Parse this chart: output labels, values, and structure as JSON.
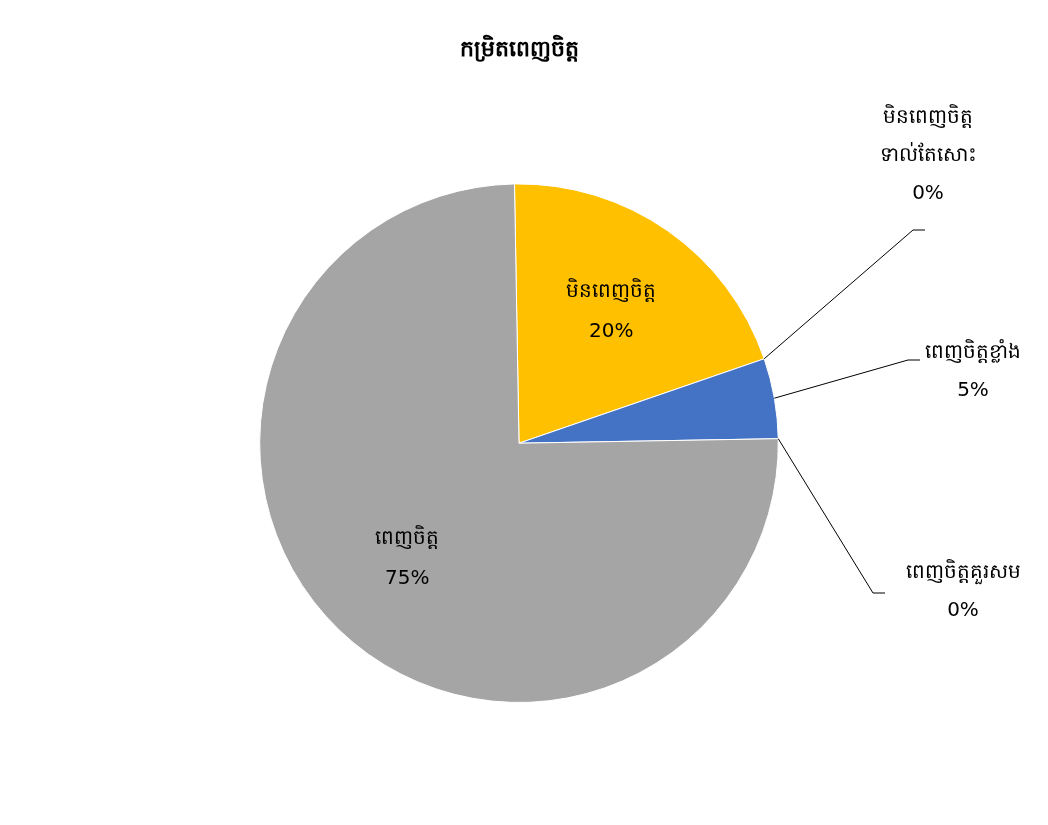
{
  "chart_data": {
    "type": "pie",
    "title": "កម្រិតពេញចិត្ត",
    "categories": [
      "មិនពេញចិត្ត",
      "មិនពេញចិត្តទាល់តែសោះ",
      "ពេញចិត្តខ្លាំង",
      "ពេញចិត្តគួរសម",
      "ពេញចិត្ត"
    ],
    "values": [
      20,
      0,
      5,
      0,
      75
    ],
    "colors": [
      "#ffc000",
      "#5b9bd5",
      "#4472c4",
      "#ed7d31",
      "#a5a5a5"
    ],
    "value_labels": [
      "20%",
      "0%",
      "5%",
      "0%",
      "75%"
    ],
    "legend": false
  }
}
